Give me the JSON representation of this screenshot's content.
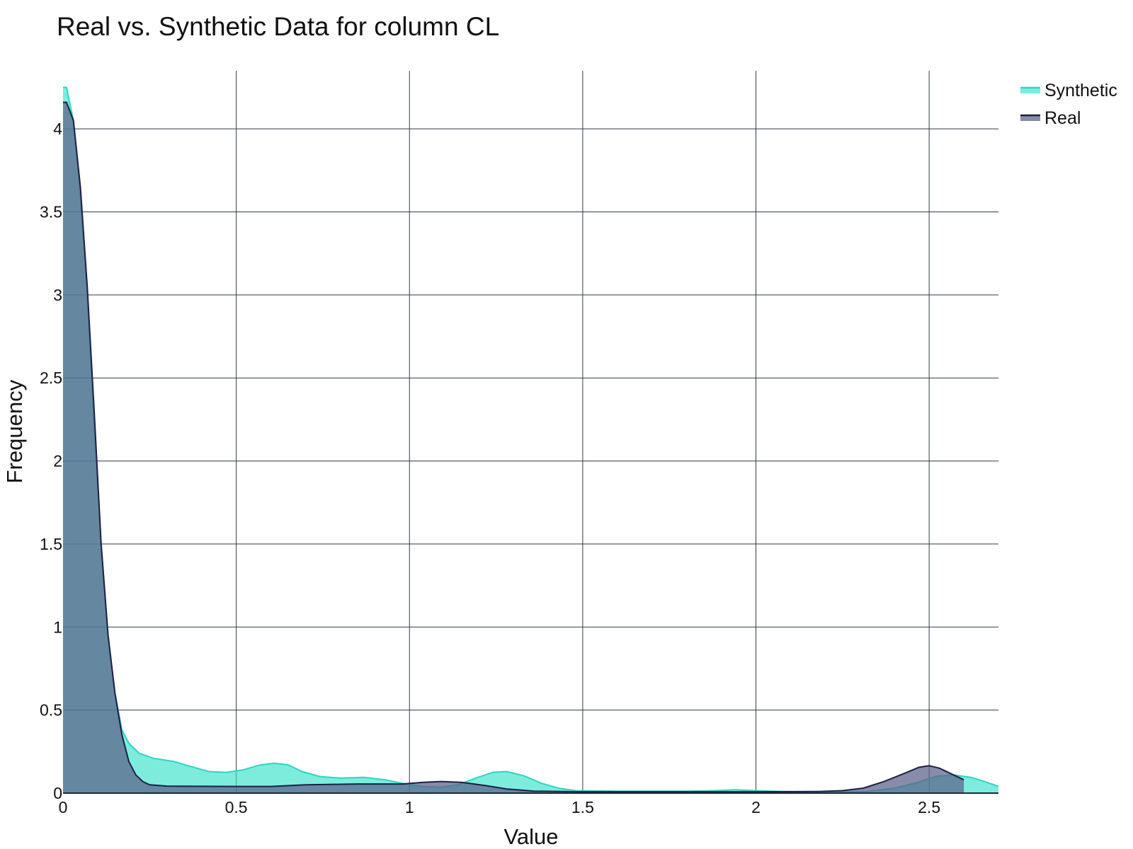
{
  "chart_data": {
    "type": "area",
    "title": "Real vs. Synthetic Data for column CL",
    "xlabel": "Value",
    "ylabel": "Frequency",
    "xlim": [
      0,
      2.7
    ],
    "ylim": [
      0,
      4.35
    ],
    "grid": true,
    "legend_placement": "top-right, outside plot",
    "x_ticks": [
      {
        "value": 0,
        "label": "0"
      },
      {
        "value": 0.5,
        "label": "0.5"
      },
      {
        "value": 1,
        "label": "1"
      },
      {
        "value": 1.5,
        "label": "1.5"
      },
      {
        "value": 2,
        "label": "2"
      },
      {
        "value": 2.5,
        "label": "2.5"
      }
    ],
    "y_ticks": [
      {
        "value": 0,
        "label": "0"
      },
      {
        "value": 0.5,
        "label": "0.5"
      },
      {
        "value": 1,
        "label": "1"
      },
      {
        "value": 1.5,
        "label": "1.5"
      },
      {
        "value": 2,
        "label": "2"
      },
      {
        "value": 2.5,
        "label": "2.5"
      },
      {
        "value": 3,
        "label": "3"
      },
      {
        "value": 3.5,
        "label": "3.5"
      },
      {
        "value": 4,
        "label": "4"
      }
    ],
    "series": [
      {
        "name": "Synthetic",
        "stroke": "#2bd6c3",
        "fill": "#2fe0c8",
        "fill_opacity": 0.62,
        "points": [
          [
            0.0,
            4.25
          ],
          [
            0.01,
            4.25
          ],
          [
            0.03,
            4.05
          ],
          [
            0.05,
            3.6
          ],
          [
            0.07,
            3.0
          ],
          [
            0.09,
            2.2
          ],
          [
            0.11,
            1.5
          ],
          [
            0.13,
            0.95
          ],
          [
            0.15,
            0.6
          ],
          [
            0.17,
            0.38
          ],
          [
            0.19,
            0.3
          ],
          [
            0.22,
            0.24
          ],
          [
            0.26,
            0.21
          ],
          [
            0.32,
            0.19
          ],
          [
            0.37,
            0.16
          ],
          [
            0.42,
            0.13
          ],
          [
            0.47,
            0.125
          ],
          [
            0.52,
            0.14
          ],
          [
            0.57,
            0.17
          ],
          [
            0.61,
            0.18
          ],
          [
            0.65,
            0.17
          ],
          [
            0.69,
            0.13
          ],
          [
            0.74,
            0.1
          ],
          [
            0.8,
            0.09
          ],
          [
            0.87,
            0.095
          ],
          [
            0.93,
            0.08
          ],
          [
            0.99,
            0.055
          ],
          [
            1.04,
            0.04
          ],
          [
            1.09,
            0.035
          ],
          [
            1.14,
            0.05
          ],
          [
            1.19,
            0.09
          ],
          [
            1.24,
            0.125
          ],
          [
            1.28,
            0.13
          ],
          [
            1.33,
            0.105
          ],
          [
            1.38,
            0.06
          ],
          [
            1.43,
            0.03
          ],
          [
            1.48,
            0.015
          ],
          [
            1.6,
            0.012
          ],
          [
            1.8,
            0.012
          ],
          [
            1.88,
            0.015
          ],
          [
            1.94,
            0.02
          ],
          [
            2.0,
            0.015
          ],
          [
            2.1,
            0.008
          ],
          [
            2.2,
            0.006
          ],
          [
            2.32,
            0.01
          ],
          [
            2.4,
            0.03
          ],
          [
            2.46,
            0.06
          ],
          [
            2.52,
            0.1
          ],
          [
            2.57,
            0.11
          ],
          [
            2.62,
            0.095
          ],
          [
            2.66,
            0.07
          ],
          [
            2.7,
            0.04
          ]
        ]
      },
      {
        "name": "Real",
        "stroke": "#1c1f45",
        "fill": "#5b5f88",
        "fill_opacity": 0.72,
        "points": [
          [
            0.0,
            4.16
          ],
          [
            0.01,
            4.16
          ],
          [
            0.03,
            4.05
          ],
          [
            0.05,
            3.65
          ],
          [
            0.07,
            3.05
          ],
          [
            0.09,
            2.3
          ],
          [
            0.11,
            1.5
          ],
          [
            0.13,
            0.95
          ],
          [
            0.15,
            0.6
          ],
          [
            0.17,
            0.35
          ],
          [
            0.19,
            0.19
          ],
          [
            0.21,
            0.11
          ],
          [
            0.23,
            0.07
          ],
          [
            0.25,
            0.05
          ],
          [
            0.3,
            0.042
          ],
          [
            0.5,
            0.04
          ],
          [
            0.6,
            0.04
          ],
          [
            0.7,
            0.05
          ],
          [
            0.85,
            0.055
          ],
          [
            0.98,
            0.055
          ],
          [
            1.04,
            0.065
          ],
          [
            1.09,
            0.07
          ],
          [
            1.15,
            0.065
          ],
          [
            1.22,
            0.045
          ],
          [
            1.28,
            0.025
          ],
          [
            1.36,
            0.012
          ],
          [
            1.5,
            0.008
          ],
          [
            2.0,
            0.008
          ],
          [
            2.18,
            0.01
          ],
          [
            2.25,
            0.015
          ],
          [
            2.31,
            0.03
          ],
          [
            2.37,
            0.07
          ],
          [
            2.43,
            0.12
          ],
          [
            2.47,
            0.155
          ],
          [
            2.5,
            0.165
          ],
          [
            2.53,
            0.15
          ],
          [
            2.57,
            0.11
          ],
          [
            2.6,
            0.08
          ]
        ]
      }
    ],
    "annotations": []
  }
}
